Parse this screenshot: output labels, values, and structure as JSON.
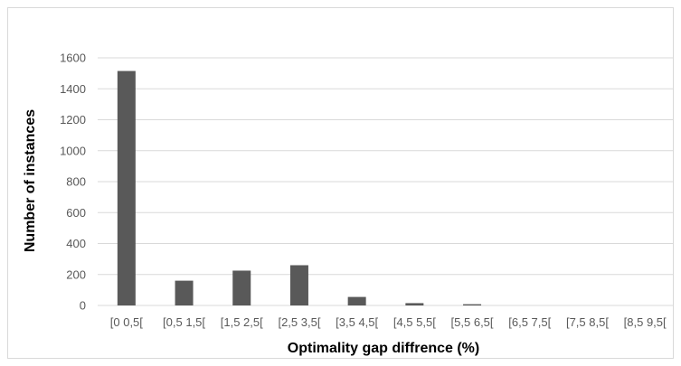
{
  "chart_data": {
    "type": "bar",
    "title": "",
    "xlabel": "Optimality gap diffrence (%)",
    "ylabel": "Number of instances",
    "ylim": [
      0,
      1600
    ],
    "yticks": [
      0,
      200,
      400,
      600,
      800,
      1000,
      1200,
      1400,
      1600
    ],
    "grid": true,
    "legend": "none",
    "categories": [
      "[0 0,5[",
      "[0,5  1,5[",
      "[1,5 2,5[",
      "[2,5 3,5[",
      "[3,5 4,5[",
      "[4,5 5,5[",
      "[5,5 6,5[",
      "[6,5 7,5[",
      "[7,5 8,5[",
      "[8,5 9,5["
    ],
    "values": [
      1515,
      160,
      225,
      260,
      55,
      15,
      8,
      0,
      0,
      0
    ],
    "bar_color": "#595959",
    "grid_color": "#d9d9d9"
  }
}
